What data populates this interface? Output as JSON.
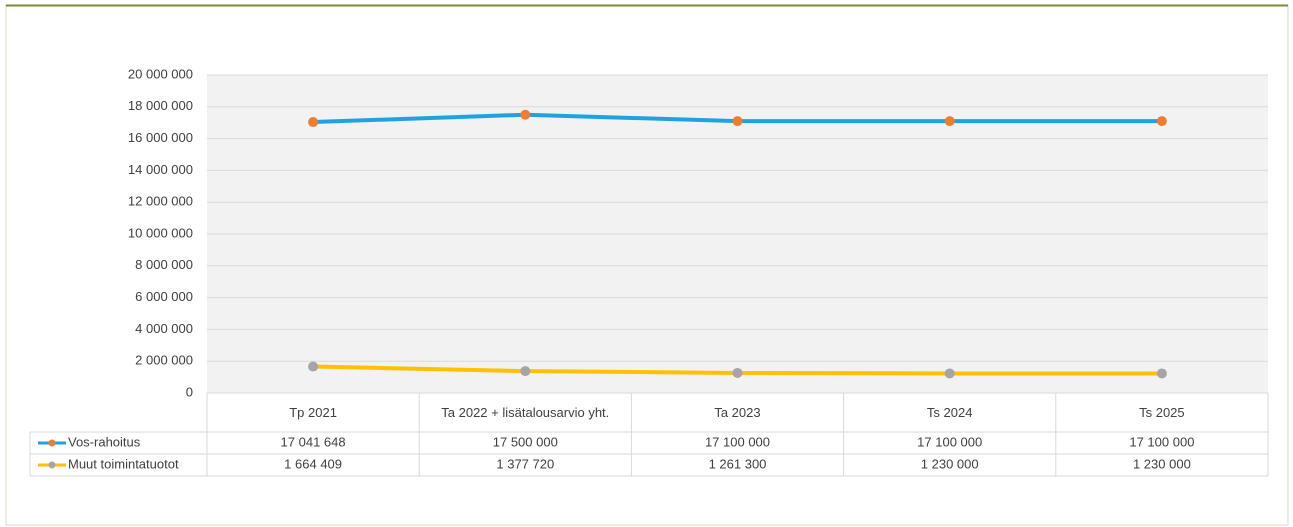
{
  "chart_data": {
    "type": "line",
    "categories": [
      "Tp 2021",
      "Ta 2022 + lisätalousarvio yht.",
      "Ta 2023",
      "Ts 2024",
      "Ts 2025"
    ],
    "series": [
      {
        "name": "Vos-rahoitus",
        "color": "#1fa3e0",
        "marker_color": "#ed7d31",
        "values": [
          17041648,
          17500000,
          17100000,
          17100000,
          17100000
        ],
        "value_labels": [
          "17 041 648",
          "17 500 000",
          "17 100 000",
          "17 100 000",
          "17 100 000"
        ]
      },
      {
        "name": "Muut toimintatuotot",
        "color": "#ffc000",
        "marker_color": "#a5a5a5",
        "values": [
          1664409,
          1377720,
          1261300,
          1230000,
          1230000
        ],
        "value_labels": [
          "1 664 409",
          "1 377 720",
          "1 261 300",
          "1 230 000",
          "1 230 000"
        ]
      }
    ],
    "ylim": [
      0,
      20000000
    ],
    "yticks": [
      0,
      {
        "value": 2000000,
        "label": "2 000 000"
      },
      {
        "value": 4000000,
        "label": "4 000 000"
      },
      {
        "value": 6000000,
        "label": "6 000 000"
      },
      {
        "value": 8000000,
        "label": "8 000 000"
      },
      {
        "value": 10000000,
        "label": "10 000 000"
      },
      {
        "value": 12000000,
        "label": "12 000 000"
      },
      {
        "value": 14000000,
        "label": "14 000 000"
      },
      {
        "value": 16000000,
        "label": "16 000 000"
      },
      {
        "value": 18000000,
        "label": "18 000 000"
      },
      {
        "value": 20000000,
        "label": "20 000 000"
      }
    ],
    "grid": true
  }
}
